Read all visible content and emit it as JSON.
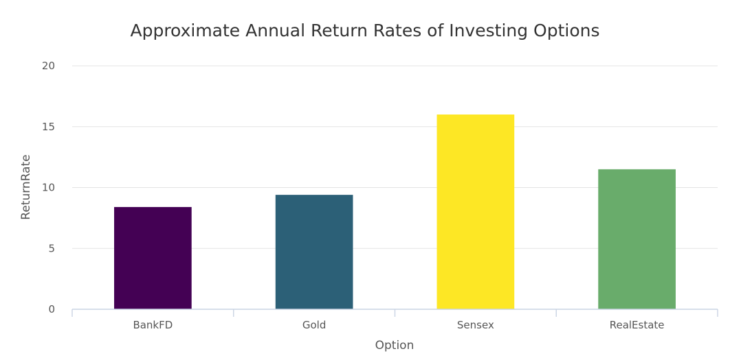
{
  "chart_data": {
    "type": "bar",
    "title": "Approximate Annual Return Rates of Investing Options",
    "xlabel": "Option",
    "ylabel": "ReturnRate",
    "categories": [
      "BankFD",
      "Gold",
      "Sensex",
      "RealEstate"
    ],
    "values": [
      8.4,
      9.4,
      16.0,
      11.5
    ],
    "colors": [
      "#440154",
      "#2c6077",
      "#fde725",
      "#69ac6b"
    ],
    "ylim": [
      0,
      20
    ],
    "yticks": [
      0,
      5,
      10,
      15,
      20
    ],
    "grid": true,
    "legend": false
  }
}
